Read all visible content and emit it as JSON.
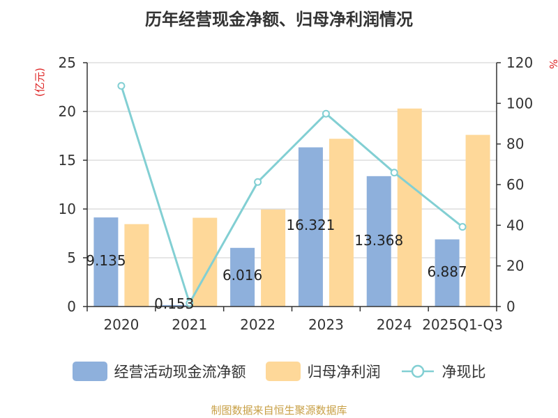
{
  "title": "历年经营现金净额、归母净利润情况",
  "source": "制图数据来自恒生聚源数据库",
  "chart_data": {
    "type": "bar",
    "categories": [
      "2020",
      "2021",
      "2022",
      "2023",
      "2024",
      "2025Q1-Q3"
    ],
    "y_left_label": "(亿元)",
    "y_right_label": "%",
    "y_left_lim": [
      0,
      25
    ],
    "y_right_lim": [
      0,
      120
    ],
    "y_left_ticks": [
      0,
      5,
      10,
      15,
      20,
      25
    ],
    "y_right_ticks": [
      0,
      20,
      40,
      60,
      80,
      100,
      120
    ],
    "grid": true,
    "legend_position": "bottom",
    "series": [
      {
        "name": "经营活动现金流净额",
        "type": "bar",
        "axis": "left",
        "color": "#8eb0dc",
        "values": [
          9.135,
          0.153,
          6.016,
          16.321,
          13.368,
          6.887
        ],
        "labels": [
          "9.135",
          "0.153",
          "6.016",
          "16.321",
          "13.368",
          "6.887"
        ]
      },
      {
        "name": "归母净利润",
        "type": "bar",
        "axis": "left",
        "color": "#fed899",
        "values": [
          8.45,
          9.1,
          9.95,
          17.2,
          20.3,
          17.6
        ]
      },
      {
        "name": "净现比",
        "type": "line",
        "axis": "right",
        "color": "#82cfd3",
        "values": [
          108.6,
          1.7,
          61.3,
          94.9,
          65.9,
          39.2
        ]
      }
    ]
  }
}
